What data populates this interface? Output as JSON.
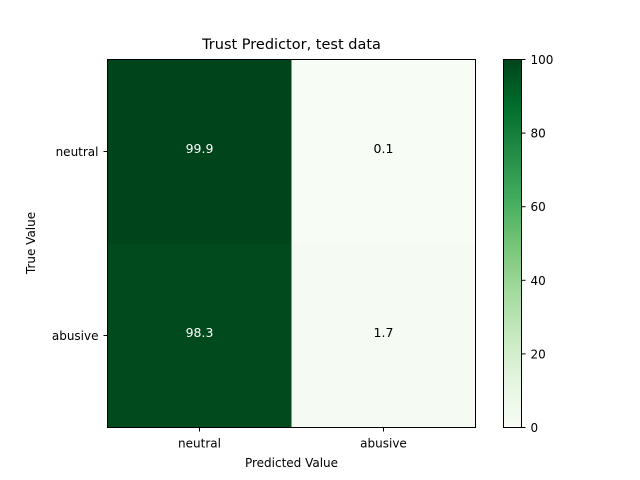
{
  "chart_data": {
    "type": "heatmap",
    "title": "Trust Predictor, test data",
    "xlabel": "Predicted Value",
    "ylabel": "True Value",
    "x_categories": [
      "neutral",
      "abusive"
    ],
    "y_categories": [
      "neutral",
      "abusive"
    ],
    "values": [
      [
        99.9,
        0.1
      ],
      [
        98.3,
        1.7
      ]
    ],
    "cell_labels": [
      [
        "99.9",
        "0.1"
      ],
      [
        "98.3",
        "1.7"
      ]
    ],
    "colormap": "Greens",
    "colorbar": {
      "range": [
        0,
        100
      ],
      "ticks": [
        0,
        20,
        40,
        60,
        80,
        100
      ]
    }
  }
}
